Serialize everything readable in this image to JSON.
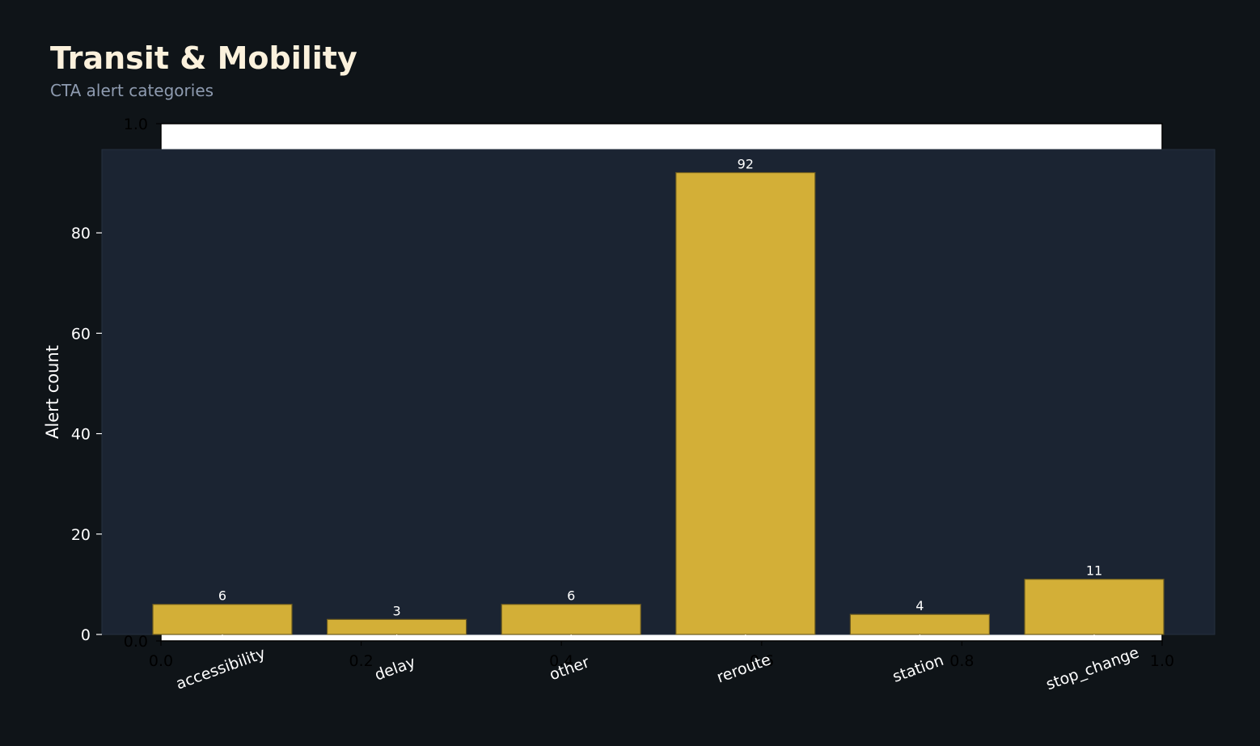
{
  "header": {
    "title": "Transit & Mobility",
    "subtitle": "CTA alert categories"
  },
  "colors": {
    "background": "#0f1418",
    "plot_background": "#1b2432",
    "bar_fill": "#d3af37",
    "bar_edge": "#6b5a20",
    "text": "#ffffff",
    "title": "#fbf1dc",
    "subtitle": "#8e9bb0"
  },
  "chart_data": [
    {
      "type": "bar",
      "title": "",
      "xlabel": "",
      "ylabel": "Alert count",
      "categories": [
        "accessibility",
        "delay",
        "other",
        "reroute",
        "station",
        "stop_change"
      ],
      "values": [
        6,
        3,
        6,
        92,
        4,
        11
      ],
      "data_labels": [
        "6",
        "3",
        "6",
        "92",
        "4",
        "11"
      ],
      "ylim": [
        0,
        96.6
      ],
      "yticks": [
        0,
        20,
        40,
        60,
        80
      ],
      "grid": false,
      "legend": "none"
    },
    {
      "type": "empty-axes",
      "xlim": [
        0,
        1
      ],
      "ylim": [
        0,
        1
      ],
      "xticks": [
        0.0,
        0.2,
        0.4,
        0.6,
        0.8,
        1.0
      ],
      "xtick_labels": [
        "0.0",
        "0.2",
        "0.4",
        "0.6",
        "0.8",
        "1.0"
      ],
      "yticks": [
        0.0,
        1.0
      ],
      "ytick_labels": [
        "0.0",
        "1.0"
      ]
    }
  ]
}
